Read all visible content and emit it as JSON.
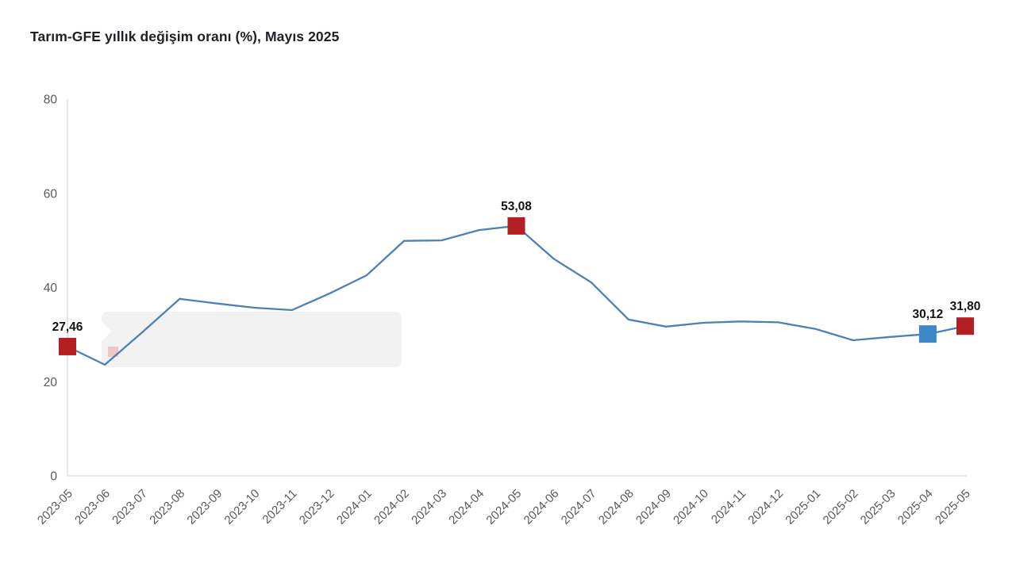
{
  "title": "Tarım-GFE yıllık değişim oranı (%), Mayıs 2025",
  "chart_data": {
    "type": "line",
    "title": "Tarım-GFE yıllık değişim oranı (%), Mayıs 2025",
    "xlabel": "",
    "ylabel": "",
    "categories": [
      "2023-05",
      "2023-06",
      "2023-07",
      "2023-08",
      "2023-09",
      "2023-10",
      "2023-11",
      "2023-12",
      "2024-01",
      "2024-02",
      "2024-03",
      "2024-04",
      "2024-05",
      "2024-06",
      "2024-07",
      "2024-08",
      "2024-09",
      "2024-10",
      "2024-11",
      "2024-12",
      "2025-01",
      "2025-02",
      "2025-03",
      "2025-04",
      "2025-05"
    ],
    "values": [
      27.46,
      23.6,
      30.5,
      37.6,
      36.6,
      35.7,
      35.2,
      38.7,
      42.6,
      49.9,
      50.0,
      52.2,
      53.08,
      46.1,
      41.1,
      33.2,
      31.7,
      32.5,
      32.8,
      32.6,
      31.2,
      28.8,
      29.5,
      30.12,
      31.8
    ],
    "ylim": [
      0,
      80
    ],
    "yticks": [
      0,
      20,
      40,
      60,
      80
    ],
    "grid": false,
    "legend": false,
    "x_label_rotation": -45,
    "line_color": "#4d81b6",
    "axis_line_color": "#d9d9d9",
    "tick_label_color": "#58595c",
    "data_label_color": "#141414",
    "highlighted_points": [
      {
        "category": "2023-05",
        "value": 27.46,
        "label": "27,46",
        "color": "#b21f24"
      },
      {
        "category": "2024-05",
        "value": 53.08,
        "label": "53,08",
        "color": "#b21f24"
      },
      {
        "category": "2025-04",
        "value": 30.12,
        "label": "30,12",
        "color": "#3d87c8"
      },
      {
        "category": "2025-05",
        "value": 31.8,
        "label": "31,80",
        "color": "#b21f24"
      }
    ],
    "ghost_tooltip": {
      "visible": true,
      "text": "",
      "fill": "#f2f2f3",
      "swatch_color": "#edc0c1"
    }
  }
}
